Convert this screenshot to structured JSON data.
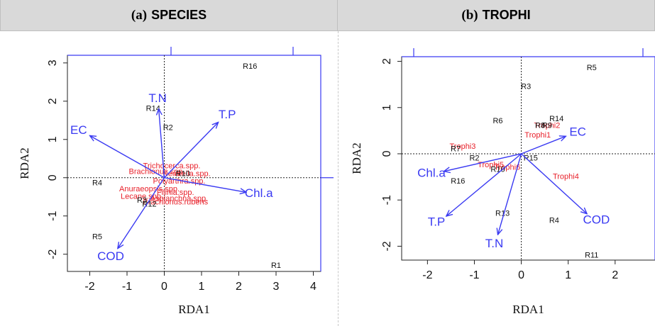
{
  "panels": [
    {
      "label": "(a)",
      "name": "SPECIES",
      "xlabel": "RDA1",
      "ylabel": "RDA2",
      "xticks": [
        "-2",
        "-1",
        "0",
        "1",
        "2",
        "3",
        "4"
      ],
      "yticks": [
        "-2",
        "-1",
        "0",
        "1",
        "2",
        "3"
      ]
    },
    {
      "label": "(b)",
      "name": "TROPHI",
      "xlabel": "RDA1",
      "ylabel": "RDA2",
      "xticks": [
        "-2",
        "-1",
        "0",
        "1",
        "2"
      ],
      "yticks": [
        "-2",
        "-1",
        "0",
        "1",
        "2"
      ]
    }
  ],
  "chart_data": [
    {
      "type": "scatter",
      "title": "(a) SPECIES",
      "xlabel": "RDA1",
      "ylabel": "RDA2",
      "xlim": [
        -2.6,
        4.2
      ],
      "ylim": [
        -2.45,
        3.2
      ],
      "sites": [
        {
          "label": "R16",
          "x": 2.3,
          "y": 2.9
        },
        {
          "label": "R14",
          "x": -0.3,
          "y": 1.8
        },
        {
          "label": "R2",
          "x": 0.1,
          "y": 1.3
        },
        {
          "label": "R4",
          "x": -1.8,
          "y": -0.15
        },
        {
          "label": "R5",
          "x": -1.8,
          "y": -1.55
        },
        {
          "label": "R1",
          "x": 3.0,
          "y": -2.3
        },
        {
          "label": "R10",
          "x": 0.5,
          "y": 0.1
        },
        {
          "label": "R3",
          "x": -0.6,
          "y": -0.6
        },
        {
          "label": "R12",
          "x": -0.4,
          "y": -0.7
        }
      ],
      "species": [
        {
          "label": "Trichocerca.spp.",
          "x": 0.2,
          "y": 0.3
        },
        {
          "label": "Brachionus.spp.",
          "x": -0.2,
          "y": 0.15
        },
        {
          "label": "Keratella.spp.",
          "x": 0.6,
          "y": 0.1
        },
        {
          "label": "Polyarthra.spp.",
          "x": 0.4,
          "y": -0.1
        },
        {
          "label": "Anuraeopsis.spp.",
          "x": -0.4,
          "y": -0.3
        },
        {
          "label": "Filinia.spp.",
          "x": 0.3,
          "y": -0.4
        },
        {
          "label": "Lecane.spp.",
          "x": -0.6,
          "y": -0.5
        },
        {
          "label": "Asplanchna.spp.",
          "x": 0.4,
          "y": -0.55
        },
        {
          "label": "Brachionus.rubens",
          "x": 0.3,
          "y": -0.65
        }
      ],
      "env_vectors": [
        {
          "label": "T.N",
          "x": -0.15,
          "y": 1.8
        },
        {
          "label": "T.P",
          "x": 1.45,
          "y": 1.45
        },
        {
          "label": "EC",
          "x": -2.0,
          "y": 1.1
        },
        {
          "label": "Chl.a",
          "x": 2.2,
          "y": -0.38
        },
        {
          "label": "COD",
          "x": -1.25,
          "y": -1.85
        }
      ]
    },
    {
      "type": "scatter",
      "title": "(b) TROPHI",
      "xlabel": "RDA1",
      "ylabel": "RDA2",
      "xlim": [
        -2.55,
        2.85
      ],
      "ylim": [
        -2.3,
        2.1
      ],
      "sites": [
        {
          "label": "R5",
          "x": 1.5,
          "y": 1.85
        },
        {
          "label": "R3",
          "x": 0.1,
          "y": 1.45
        },
        {
          "label": "R6",
          "x": -0.5,
          "y": 0.7
        },
        {
          "label": "R14",
          "x": 0.75,
          "y": 0.75
        },
        {
          "label": "R8",
          "x": 0.4,
          "y": 0.6
        },
        {
          "label": "R9",
          "x": 0.55,
          "y": 0.6
        },
        {
          "label": "R15",
          "x": 0.2,
          "y": -0.1
        },
        {
          "label": "R2",
          "x": -1.0,
          "y": -0.1
        },
        {
          "label": "R7",
          "x": -1.4,
          "y": 0.1
        },
        {
          "label": "R10",
          "x": -0.5,
          "y": -0.35
        },
        {
          "label": "R16",
          "x": -1.35,
          "y": -0.6
        },
        {
          "label": "R13",
          "x": -0.4,
          "y": -1.3
        },
        {
          "label": "R4",
          "x": 0.7,
          "y": -1.45
        },
        {
          "label": "R11",
          "x": 1.5,
          "y": -2.2
        }
      ],
      "species": [
        {
          "label": "Trophi1",
          "x": 0.35,
          "y": 0.4
        },
        {
          "label": "Trophi2",
          "x": 0.55,
          "y": 0.6
        },
        {
          "label": "Trophi3",
          "x": -1.25,
          "y": 0.15
        },
        {
          "label": "Trophi4",
          "x": 0.95,
          "y": -0.5
        },
        {
          "label": "Trophi5",
          "x": -0.65,
          "y": -0.25
        },
        {
          "label": "Trophi6",
          "x": -0.3,
          "y": -0.3
        }
      ],
      "env_vectors": [
        {
          "label": "EC",
          "x": 0.95,
          "y": 0.38
        },
        {
          "label": "Chl.a",
          "x": -1.65,
          "y": -0.38
        },
        {
          "label": "T.P",
          "x": -1.6,
          "y": -1.35
        },
        {
          "label": "T.N",
          "x": -0.5,
          "y": -1.75
        },
        {
          "label": "COD",
          "x": 1.4,
          "y": -1.3
        }
      ]
    }
  ],
  "colors": {
    "header_bg": "#d9d9d9",
    "vector": "#3a3af2",
    "species_text": "#e8202a",
    "site_text": "#111111"
  }
}
